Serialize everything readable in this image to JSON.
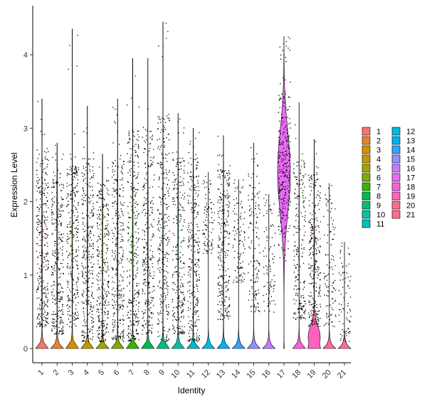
{
  "chart_data": {
    "type": "violin",
    "xlabel": "Identity",
    "ylabel": "Expression Level",
    "ylim": [
      -0.2,
      4.6
    ],
    "yticks": [
      0,
      1,
      2,
      3,
      4
    ],
    "categories": [
      "1",
      "2",
      "3",
      "4",
      "5",
      "6",
      "7",
      "8",
      "9",
      "10",
      "11",
      "12",
      "13",
      "14",
      "15",
      "16",
      "17",
      "18",
      "19",
      "20",
      "21"
    ],
    "series": [
      {
        "name": "1",
        "color": "#F8766D",
        "max": 3.4,
        "median": 0,
        "nonzero_fraction": 0.95,
        "nonzero_range": [
          0.3,
          2.7
        ]
      },
      {
        "name": "2",
        "color": "#EA8331",
        "max": 2.8,
        "median": 0,
        "nonzero_fraction": 0.9,
        "nonzero_range": [
          0.2,
          2.4
        ]
      },
      {
        "name": "3",
        "color": "#D89000",
        "max": 4.35,
        "median": 0,
        "nonzero_fraction": 0.85,
        "nonzero_range": [
          0.3,
          2.5
        ]
      },
      {
        "name": "4",
        "color": "#C09B00",
        "max": 3.3,
        "median": 0,
        "nonzero_fraction": 0.92,
        "nonzero_range": [
          0.1,
          2.6
        ]
      },
      {
        "name": "5",
        "color": "#A3A500",
        "max": 2.65,
        "median": 0,
        "nonzero_fraction": 0.88,
        "nonzero_range": [
          0.1,
          2.3
        ]
      },
      {
        "name": "6",
        "color": "#7CAE00",
        "max": 3.4,
        "median": 0,
        "nonzero_fraction": 0.9,
        "nonzero_range": [
          0.1,
          2.6
        ]
      },
      {
        "name": "7",
        "color": "#39B600",
        "max": 3.95,
        "median": 0,
        "nonzero_fraction": 0.93,
        "nonzero_range": [
          0.1,
          3.0
        ]
      },
      {
        "name": "8",
        "color": "#00BB4E",
        "max": 3.95,
        "median": 0,
        "nonzero_fraction": 0.8,
        "nonzero_range": [
          0.2,
          3.0
        ]
      },
      {
        "name": "9",
        "color": "#00BF7D",
        "max": 4.45,
        "median": 0,
        "nonzero_fraction": 0.85,
        "nonzero_range": [
          0.1,
          3.2
        ]
      },
      {
        "name": "10",
        "color": "#00C1A3",
        "max": 3.2,
        "median": 0,
        "nonzero_fraction": 0.8,
        "nonzero_range": [
          0.2,
          2.6
        ]
      },
      {
        "name": "11",
        "color": "#00BFC4",
        "max": 3.0,
        "median": 0,
        "nonzero_fraction": 0.85,
        "nonzero_range": [
          0.1,
          2.6
        ]
      },
      {
        "name": "12",
        "color": "#00BAE0",
        "max": 2.4,
        "median": 0,
        "nonzero_fraction": 0.2,
        "nonzero_range": [
          1.3,
          2.3
        ]
      },
      {
        "name": "13",
        "color": "#00B0F6",
        "max": 2.9,
        "median": 0,
        "nonzero_fraction": 0.8,
        "nonzero_range": [
          0.4,
          2.5
        ]
      },
      {
        "name": "14",
        "color": "#35A2FF",
        "max": 2.3,
        "median": 0,
        "nonzero_fraction": 0.25,
        "nonzero_range": [
          0.9,
          2.3
        ]
      },
      {
        "name": "15",
        "color": "#9590FF",
        "max": 2.8,
        "median": 0,
        "nonzero_fraction": 0.35,
        "nonzero_range": [
          0.5,
          2.6
        ]
      },
      {
        "name": "16",
        "color": "#C77CFF",
        "max": 2.1,
        "median": 0,
        "nonzero_fraction": 0.2,
        "nonzero_range": [
          0.5,
          2.1
        ]
      },
      {
        "name": "17",
        "color": "#E76BF3",
        "max": 4.25,
        "median": 2.4,
        "nonzero_fraction": 1.0,
        "nonzero_range": [
          1.2,
          3.9
        ]
      },
      {
        "name": "18",
        "color": "#FA62DB",
        "max": 3.35,
        "median": 0,
        "nonzero_fraction": 0.6,
        "nonzero_range": [
          0.4,
          2.6
        ]
      },
      {
        "name": "19",
        "color": "#FF62BC",
        "max": 2.85,
        "median": 0.3,
        "nonzero_fraction": 0.85,
        "nonzero_range": [
          0.3,
          2.4
        ]
      },
      {
        "name": "20",
        "color": "#FF6C91",
        "max": 2.25,
        "median": 0,
        "nonzero_fraction": 0.25,
        "nonzero_range": [
          0.3,
          2.1
        ]
      },
      {
        "name": "21",
        "color": "#FF6C91",
        "max": 1.45,
        "median": 0,
        "nonzero_fraction": 0.15,
        "nonzero_range": [
          0.1,
          1.4
        ]
      }
    ],
    "legend_placement": "right",
    "grid": false
  }
}
